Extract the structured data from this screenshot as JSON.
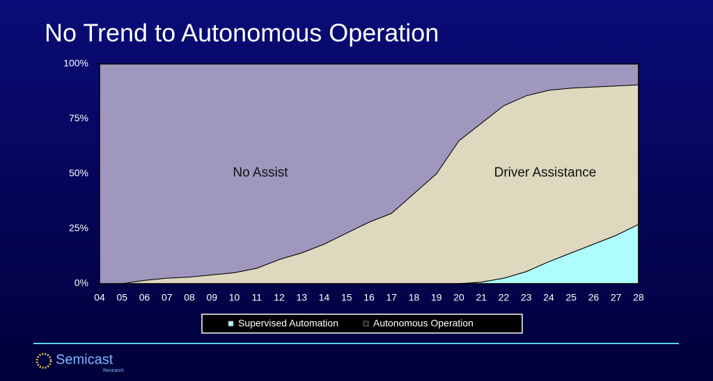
{
  "chart_data": {
    "type": "stacked_area",
    "title": "No Trend to Autonomous Operation",
    "categories": [
      "04",
      "05",
      "06",
      "07",
      "08",
      "09",
      "10",
      "11",
      "12",
      "13",
      "14",
      "15",
      "16",
      "17",
      "18",
      "19",
      "20",
      "21",
      "22",
      "23",
      "24",
      "25",
      "26",
      "27",
      "28"
    ],
    "series": [
      {
        "name": "Supervised Automation",
        "color": "#aefcfc",
        "in_legend": true,
        "values": [
          0,
          0,
          0,
          0,
          0,
          0,
          0,
          0,
          0,
          0,
          0,
          0,
          0,
          0,
          0,
          0,
          0,
          0.7,
          2.5,
          5.5,
          10,
          14,
          18,
          22,
          27
        ]
      },
      {
        "name": "Autonomous Operation",
        "color": "#111111",
        "in_legend": true,
        "values": [
          0,
          0,
          0,
          0,
          0,
          0,
          0,
          0,
          0,
          0,
          0,
          0,
          0,
          0,
          0,
          0,
          0,
          0,
          0,
          0,
          0,
          0,
          0,
          0,
          0
        ]
      },
      {
        "name": "Driver Assistance",
        "color": "#ddd8be",
        "in_legend": false,
        "values": [
          0,
          0,
          1.5,
          2.5,
          3,
          4,
          5,
          7,
          11,
          14,
          18,
          23,
          28,
          32,
          41,
          50,
          65,
          72.3,
          78.5,
          80,
          78,
          75,
          71.5,
          68,
          63.5
        ]
      },
      {
        "name": "No Assist",
        "color": "#9f97bd",
        "in_legend": false,
        "values": [
          100,
          100,
          98.5,
          97.5,
          97,
          96,
          95,
          93,
          89,
          86,
          82,
          77,
          72,
          68,
          59,
          50,
          35,
          27,
          19,
          14.5,
          12,
          11,
          10.5,
          10,
          9.5
        ]
      }
    ],
    "ylim": [
      0,
      100
    ],
    "yticks": [
      {
        "value": 0,
        "label": "0%"
      },
      {
        "value": 25,
        "label": "25%"
      },
      {
        "value": 50,
        "label": "50%"
      },
      {
        "value": 75,
        "label": "75%"
      },
      {
        "value": 100,
        "label": "100%"
      }
    ],
    "grid": false
  },
  "footer": {
    "logo_name": "Semicast",
    "logo_sub": "Research"
  }
}
